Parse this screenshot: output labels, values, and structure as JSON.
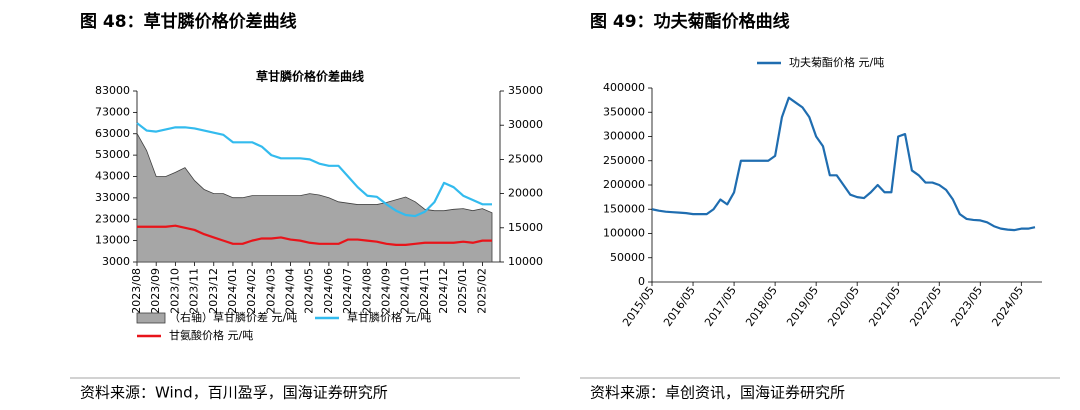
{
  "figures": [
    {
      "caption": "图 48：草甘膦价格价差曲线",
      "source": "资料来源：Wind，百川盈孚，国海证券研究所"
    },
    {
      "caption": "图 49：功夫菊酯价格曲线",
      "source": "资料来源：卓创资讯，国海证券研究所"
    }
  ],
  "chart_data": [
    {
      "type": "combo",
      "title": "草甘膦价格价差曲线",
      "categories": [
        "2023/08",
        null,
        "2023/09",
        null,
        "2023/10",
        null,
        "2023/11",
        null,
        "2023/12",
        null,
        "2024/01",
        null,
        "2024/02",
        null,
        "2024/03",
        null,
        "2024/04",
        null,
        "2024/05",
        null,
        "2024/06",
        null,
        "2024/07",
        null,
        "2024/08",
        null,
        "2024/09",
        null,
        "2024/10",
        null,
        "2024/11",
        null,
        "2024/12",
        null,
        "2025/01",
        null,
        "2025/02",
        null
      ],
      "ylim": [
        3000,
        83000
      ],
      "yticks": [
        3000,
        13000,
        23000,
        33000,
        43000,
        53000,
        63000,
        73000,
        83000
      ],
      "y2lim": [
        10000,
        35000
      ],
      "y2ticks": [
        10000,
        15000,
        20000,
        25000,
        30000,
        35000
      ],
      "series": [
        {
          "name": "（右轴）草甘膦价差  元/吨",
          "type": "area",
          "axis": "y2",
          "color": "#a6a6a6",
          "values": [
            28800,
            26300,
            22500,
            22500,
            23100,
            23800,
            21900,
            20600,
            20000,
            20000,
            19400,
            19400,
            19700,
            19700,
            19700,
            19700,
            19700,
            19700,
            20000,
            19800,
            19400,
            18800,
            18600,
            18400,
            18400,
            18400,
            18700,
            19100,
            19500,
            18800,
            17700,
            17500,
            17500,
            17700,
            17800,
            17500,
            17800,
            17200
          ]
        },
        {
          "name": "草甘膦价格  元/吨",
          "type": "line",
          "color": "#33bbee",
          "values": [
            68000,
            64500,
            64000,
            65000,
            66000,
            66000,
            65500,
            64500,
            63500,
            62500,
            59000,
            59000,
            59000,
            57000,
            53000,
            51500,
            51500,
            51500,
            51000,
            49000,
            48000,
            48000,
            43000,
            38000,
            34000,
            33500,
            30000,
            27000,
            25000,
            24500,
            26500,
            31000,
            40000,
            38000,
            34000,
            32000,
            30000,
            30000
          ]
        },
        {
          "name": "甘氨酸价格  元/吨",
          "type": "line",
          "color": "#e8141a",
          "values": [
            19500,
            19500,
            19500,
            19500,
            20000,
            19000,
            18000,
            16000,
            14500,
            13000,
            11500,
            11500,
            13000,
            14000,
            14000,
            14500,
            13500,
            13000,
            12000,
            11500,
            11500,
            11500,
            13500,
            13500,
            13000,
            12500,
            11500,
            11000,
            11000,
            11500,
            12000,
            12000,
            12000,
            12000,
            12500,
            12000,
            13000,
            13000
          ]
        }
      ]
    },
    {
      "type": "line",
      "categories": [
        "2015/05",
        null,
        null,
        null,
        null,
        null,
        "2016/05",
        null,
        null,
        null,
        null,
        null,
        "2017/05",
        null,
        null,
        null,
        null,
        null,
        "2018/05",
        null,
        null,
        null,
        null,
        null,
        "2019/05",
        null,
        null,
        null,
        null,
        null,
        "2020/05",
        null,
        null,
        null,
        null,
        null,
        "2021/05",
        null,
        null,
        null,
        null,
        null,
        "2022/05",
        null,
        null,
        null,
        null,
        null,
        "2023/05",
        null,
        null,
        null,
        null,
        null,
        "2024/05",
        null,
        null
      ],
      "ylim": [
        0,
        400000
      ],
      "yticks": [
        0,
        50000,
        100000,
        150000,
        200000,
        250000,
        300000,
        350000,
        400000
      ],
      "series": [
        {
          "name": "功夫菊酯价格  元/吨",
          "type": "line",
          "color": "#1f6db0",
          "values": [
            150000,
            147000,
            145000,
            144000,
            143000,
            142000,
            140000,
            140000,
            140000,
            150000,
            170000,
            160000,
            185000,
            250000,
            250000,
            250000,
            250000,
            250000,
            260000,
            340000,
            380000,
            370000,
            360000,
            340000,
            300000,
            280000,
            220000,
            220000,
            200000,
            180000,
            175000,
            173000,
            185000,
            200000,
            185000,
            185000,
            300000,
            305000,
            230000,
            220000,
            205000,
            205000,
            200000,
            190000,
            170000,
            140000,
            130000,
            128000,
            127000,
            123000,
            115000,
            110000,
            108000,
            107000,
            110000,
            110000,
            113000
          ]
        }
      ]
    }
  ]
}
